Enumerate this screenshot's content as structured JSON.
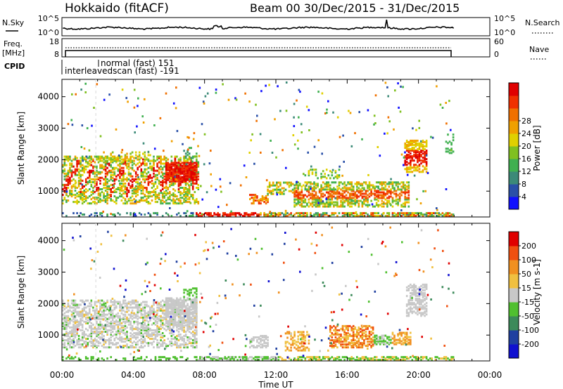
{
  "header": {
    "station": "Hokkaido (fitACF)",
    "beam_range": "Beam 00   30/Dec/2015 - 31/Dec/2015"
  },
  "chart_data": {
    "type": "heatmap",
    "x_ticks": [
      "00:00",
      "04:00",
      "08:00",
      "12:00",
      "16:00",
      "20:00",
      "00:00"
    ],
    "xlabel": "Time UT",
    "xlim_hours": [
      0,
      24
    ],
    "data_end_hours": 22,
    "top_panels": {
      "noise": {
        "label": "N.Sky",
        "right_label": "N.Search",
        "y_ticks_left": [
          "10^5",
          "10^0"
        ],
        "y_ticks_right": [
          "10^5",
          "10^0"
        ]
      },
      "freq": {
        "label_line1": "Freq.",
        "label_line2": "[MHz]",
        "y_ticks_left": [
          "18",
          "8"
        ],
        "y_ticks_right": [
          "60",
          "0"
        ],
        "right_label": "Nave"
      },
      "cpid": {
        "label": "CPID",
        "modes": [
          {
            "text": "normal (fast) 151",
            "start_hours": 1.9
          },
          {
            "text": "interleavedscan (fast) -191",
            "start_hours": 0.1
          }
        ]
      }
    },
    "power": {
      "ylabel": "Slant Range [km]",
      "y_ticks": [
        1000,
        2000,
        3000,
        4000
      ],
      "ylim": [
        180,
        4550
      ],
      "colorbar_label": "Power [dB]",
      "colorbar_ticks": [
        "4",
        "8",
        "12",
        "16",
        "20",
        "24",
        "28"
      ],
      "colorbar_colors": [
        "#1010ff",
        "#2a50a8",
        "#3c8a78",
        "#40b050",
        "#80c020",
        "#e0d000",
        "#f0a000",
        "#f07000",
        "#f03000",
        "#e00000"
      ]
    },
    "velocity": {
      "ylabel": "Slant Range [km]",
      "y_ticks": [
        1000,
        2000,
        3000,
        4000
      ],
      "ylim": [
        180,
        4550
      ],
      "colorbar_label": "Velocity [m s-1]",
      "colorbar_ticks": [
        "200",
        "100",
        "50",
        "15",
        "-15",
        "-50",
        "-100",
        "-200"
      ],
      "colorbar_colors": [
        "#1010d0",
        "#2040a0",
        "#3c8a5a",
        "#50c030",
        "#c8c8c8",
        "#f0c040",
        "#f09020",
        "#f05010",
        "#e00000"
      ]
    }
  }
}
